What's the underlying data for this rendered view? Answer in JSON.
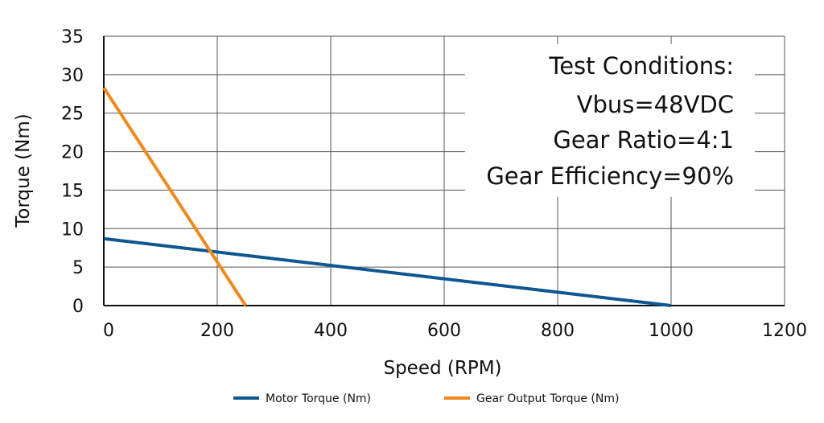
{
  "chart_data": {
    "type": "line",
    "xlabel": "Speed (RPM)",
    "ylabel": "Torque (Nm)",
    "xlim": [
      0,
      1200
    ],
    "ylim": [
      0,
      35
    ],
    "xticks": [
      "0",
      "200",
      "400",
      "600",
      "800",
      "1000",
      "1200"
    ],
    "yticks": [
      "0",
      "5",
      "10",
      "15",
      "20",
      "25",
      "30",
      "35"
    ],
    "grid": true,
    "legend_position": "bottom",
    "annotation": [
      "Test Conditions:",
      "Vbus=48VDC",
      "Gear Ratio=4:1",
      "Gear Efficiency=90%"
    ],
    "series": [
      {
        "name": "Motor Torque (Nm)",
        "color": "#0e5792",
        "x": [
          0,
          1000
        ],
        "y": [
          8.7,
          0
        ]
      },
      {
        "name": "Gear Output Torque (Nm)",
        "color": "#f0891e",
        "x": [
          0,
          250
        ],
        "y": [
          28.3,
          0
        ]
      }
    ]
  }
}
